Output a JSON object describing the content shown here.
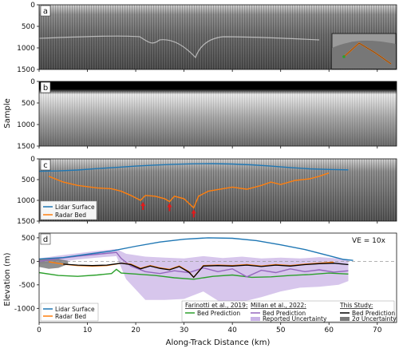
{
  "chart_data": [
    {
      "panel": "a",
      "type": "heatmap",
      "ylim": [
        1500,
        0
      ],
      "xlim": [
        0,
        74
      ],
      "yticks": [
        0,
        500,
        1000,
        1500
      ],
      "inset_map": true
    },
    {
      "panel": "b",
      "type": "heatmap",
      "ylabel": "Sample",
      "ylim": [
        1500,
        0
      ],
      "xlim": [
        0,
        74
      ],
      "yticks": [
        0,
        500,
        1000,
        1500
      ]
    },
    {
      "panel": "c",
      "type": "line",
      "ylim": [
        1500,
        0
      ],
      "xlim": [
        0,
        74
      ],
      "yticks": [
        0,
        500,
        1000,
        1500
      ],
      "series": [
        {
          "name": "Lidar Surface",
          "color": "#1f77b4",
          "x": [
            0,
            4,
            8,
            12,
            16,
            20,
            24,
            28,
            32,
            36,
            40,
            44,
            48,
            52,
            56,
            60,
            64
          ],
          "y": [
            300,
            290,
            270,
            235,
            205,
            175,
            150,
            130,
            120,
            115,
            125,
            145,
            175,
            210,
            240,
            255,
            265
          ]
        },
        {
          "name": "Radar Bed",
          "color": "#ff7f0e",
          "x": [
            2,
            5,
            8,
            12,
            15,
            17,
            19,
            21,
            22,
            24,
            26,
            27,
            28,
            30,
            32,
            33,
            35,
            38,
            40,
            43,
            46,
            48,
            50,
            53,
            56,
            58,
            60
          ],
          "y": [
            420,
            560,
            640,
            700,
            720,
            780,
            880,
            1000,
            880,
            900,
            960,
            1030,
            900,
            960,
            1180,
            900,
            780,
            720,
            680,
            730,
            640,
            560,
            620,
            520,
            480,
            420,
            340
          ]
        }
      ],
      "annotations": [
        {
          "type": "arrow",
          "x": 21.5,
          "y": 1000,
          "color": "#e31a1c"
        },
        {
          "type": "arrow",
          "x": 27,
          "y": 1030,
          "color": "#e31a1c"
        },
        {
          "type": "arrow",
          "x": 32,
          "y": 1180,
          "color": "#e31a1c"
        }
      ]
    },
    {
      "panel": "d",
      "type": "line",
      "xlabel": "Along-Track Distance (km)",
      "ylabel": "Elevation (m)",
      "xlim": [
        0,
        74
      ],
      "ylim": [
        -1300,
        600
      ],
      "yticks": [
        -1000,
        -500,
        0,
        500
      ],
      "xticks": [
        0,
        10,
        20,
        30,
        40,
        50,
        60,
        70
      ],
      "annotation": "VE = 10x",
      "series": [
        {
          "name": "Lidar Surface",
          "color": "#1f77b4",
          "x": [
            0,
            5,
            10,
            15,
            20,
            25,
            30,
            35,
            40,
            45,
            50,
            55,
            60,
            63,
            65
          ],
          "y": [
            50,
            80,
            150,
            220,
            320,
            410,
            470,
            500,
            490,
            440,
            350,
            250,
            120,
            40,
            20
          ]
        },
        {
          "name": "Radar Bed",
          "color": "#ff7f0e",
          "x": [
            2,
            5,
            8,
            11,
            14,
            17,
            19,
            21,
            23,
            25,
            27,
            29,
            31,
            32,
            34,
            37,
            40,
            43,
            46,
            49,
            52,
            55,
            58,
            61
          ],
          "y": [
            -10,
            -60,
            -90,
            -100,
            -90,
            -40,
            -60,
            -150,
            -90,
            -140,
            -170,
            -100,
            -220,
            -340,
            -90,
            -80,
            -90,
            -70,
            -100,
            -70,
            -90,
            -60,
            -40,
            -20
          ]
        },
        {
          "name": "Bed Prediction (Farinotti et al., 2019)",
          "color": "#2ca02c",
          "x": [
            0,
            4,
            8,
            12,
            15,
            16,
            17,
            20,
            24,
            28,
            32,
            36,
            40,
            44,
            48,
            52,
            56,
            60,
            64
          ],
          "y": [
            -240,
            -300,
            -320,
            -290,
            -260,
            -170,
            -250,
            -270,
            -300,
            -350,
            -380,
            -320,
            -290,
            -340,
            -330,
            -300,
            -280,
            -250,
            -270
          ]
        },
        {
          "name": "Bed Prediction (Millan et al., 2022)",
          "color": "#9467bd",
          "x": [
            0,
            4,
            8,
            12,
            16,
            17,
            19,
            22,
            25,
            28,
            31,
            34,
            37,
            40,
            43,
            46,
            49,
            52,
            55,
            58,
            61,
            64
          ],
          "y": [
            0,
            60,
            110,
            150,
            190,
            60,
            -100,
            -220,
            -260,
            -200,
            -240,
            -140,
            -220,
            -160,
            -330,
            -190,
            -240,
            -160,
            -220,
            -180,
            -230,
            -200
          ]
        },
        {
          "name": "Bed Prediction (This Study)",
          "color": "#000000",
          "x": [
            5,
            8,
            11,
            14,
            17,
            19,
            21,
            23,
            25,
            27,
            29,
            31,
            32,
            34,
            37,
            40,
            43,
            46,
            49,
            52,
            55,
            58,
            61,
            64
          ],
          "y": [
            -60,
            -80,
            -90,
            -80,
            -40,
            -70,
            -160,
            -100,
            -150,
            -180,
            -110,
            -230,
            -340,
            -100,
            -90,
            -100,
            -80,
            -110,
            -80,
            -100,
            -70,
            -50,
            -40,
            -70
          ]
        }
      ],
      "bands": [
        {
          "name": "Reported Uncertainty (Millan et al., 2022)",
          "color": "#c9b3e6",
          "x": [
            0,
            4,
            8,
            12,
            16,
            18,
            22,
            26,
            30,
            34,
            38,
            42,
            46,
            50,
            54,
            58,
            62,
            64
          ],
          "upper": [
            60,
            120,
            170,
            220,
            260,
            160,
            100,
            80,
            60,
            110,
            70,
            100,
            60,
            80,
            60,
            90,
            60,
            40
          ],
          "lower": [
            -60,
            -20,
            40,
            80,
            110,
            -380,
            -820,
            -820,
            -800,
            -640,
            -900,
            -860,
            -760,
            -640,
            -560,
            -540,
            -500,
            -420
          ]
        },
        {
          "name": "2σ Uncertainty (This Study)",
          "color": "#7a7a7a",
          "x": [
            0,
            2,
            4,
            6
          ],
          "upper": [
            40,
            60,
            50,
            10
          ],
          "lower": [
            -120,
            -160,
            -140,
            -60
          ]
        }
      ]
    }
  ],
  "legend_c": {
    "items": [
      "Lidar Surface",
      "Radar Bed"
    ]
  },
  "legend_d_left": {
    "items": [
      "Lidar Surface",
      "Radar Bed"
    ]
  },
  "legend_d_right": {
    "groups": [
      {
        "title": "Farinotti et al., 2019:",
        "items": [
          "Bed Prediction"
        ]
      },
      {
        "title": "Millan et al., 2022:",
        "items": [
          "Bed Prediction",
          "Reported Uncertainty"
        ]
      },
      {
        "title": "This Study:",
        "items": [
          "Bed Prediction",
          "2σ Uncertainty"
        ]
      }
    ]
  },
  "colors": {
    "lidar": "#1f77b4",
    "radar": "#ff7f0e",
    "farinotti": "#2ca02c",
    "millan": "#9467bd",
    "millan_band": "#c9b3e6",
    "this_study": "#000000",
    "this_band": "#7a7a7a",
    "arrow": "#e31a1c"
  },
  "panel_labels": [
    "a",
    "b",
    "c",
    "d"
  ]
}
